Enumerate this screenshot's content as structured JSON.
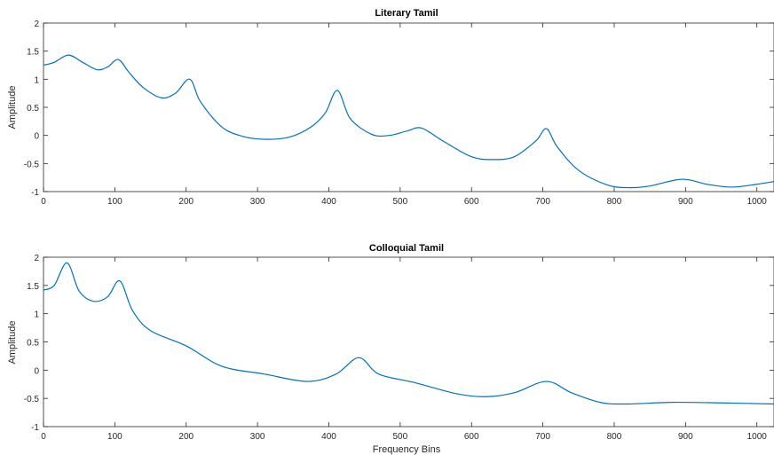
{
  "chart_data": [
    {
      "type": "line",
      "title": "Literary Tamil",
      "xlabel": "",
      "ylabel": "Amplitude",
      "xlim": [
        0,
        1024
      ],
      "ylim": [
        -1,
        2
      ],
      "xticks": [
        0,
        100,
        200,
        300,
        400,
        500,
        600,
        700,
        800,
        900,
        1000
      ],
      "yticks": [
        -1,
        -0.5,
        0,
        0.5,
        1,
        1.5,
        2
      ],
      "grid": false,
      "color": "#0072BD",
      "series": [
        {
          "x": [
            0,
            15,
            35,
            55,
            75,
            90,
            105,
            120,
            140,
            165,
            185,
            205,
            220,
            250,
            280,
            312,
            345,
            375,
            395,
            412,
            430,
            460,
            485,
            510,
            530,
            560,
            600,
            630,
            660,
            690,
            705,
            720,
            750,
            790,
            820,
            850,
            895,
            930,
            965,
            1000,
            1024
          ],
          "y": [
            1.25,
            1.3,
            1.43,
            1.3,
            1.17,
            1.22,
            1.35,
            1.12,
            0.85,
            0.67,
            0.75,
            1.0,
            0.6,
            0.15,
            -0.02,
            -0.07,
            -0.03,
            0.15,
            0.4,
            0.8,
            0.3,
            0.02,
            0.0,
            0.08,
            0.13,
            -0.1,
            -0.38,
            -0.43,
            -0.38,
            -0.1,
            0.12,
            -0.2,
            -0.62,
            -0.88,
            -0.93,
            -0.9,
            -0.78,
            -0.87,
            -0.92,
            -0.87,
            -0.82
          ]
        }
      ]
    },
    {
      "type": "line",
      "title": "Colloquial Tamil",
      "xlabel": "Frequency Bins",
      "ylabel": "Amplitude",
      "xlim": [
        0,
        1024
      ],
      "ylim": [
        -1,
        2
      ],
      "xticks": [
        0,
        100,
        200,
        300,
        400,
        500,
        600,
        700,
        800,
        900,
        1000
      ],
      "yticks": [
        -1,
        -0.5,
        0,
        0.5,
        1,
        1.5,
        2
      ],
      "grid": false,
      "color": "#0072BD",
      "series": [
        {
          "x": [
            0,
            15,
            33,
            50,
            70,
            90,
            107,
            125,
            150,
            200,
            250,
            310,
            370,
            410,
            442,
            470,
            520,
            580,
            620,
            660,
            705,
            740,
            780,
            815,
            880,
            950,
            1024
          ],
          "y": [
            1.42,
            1.5,
            1.9,
            1.4,
            1.22,
            1.3,
            1.58,
            1.05,
            0.7,
            0.43,
            0.07,
            -0.07,
            -0.2,
            -0.07,
            0.22,
            -0.07,
            -0.22,
            -0.42,
            -0.47,
            -0.4,
            -0.2,
            -0.4,
            -0.57,
            -0.6,
            -0.57,
            -0.58,
            -0.6
          ]
        }
      ]
    }
  ]
}
